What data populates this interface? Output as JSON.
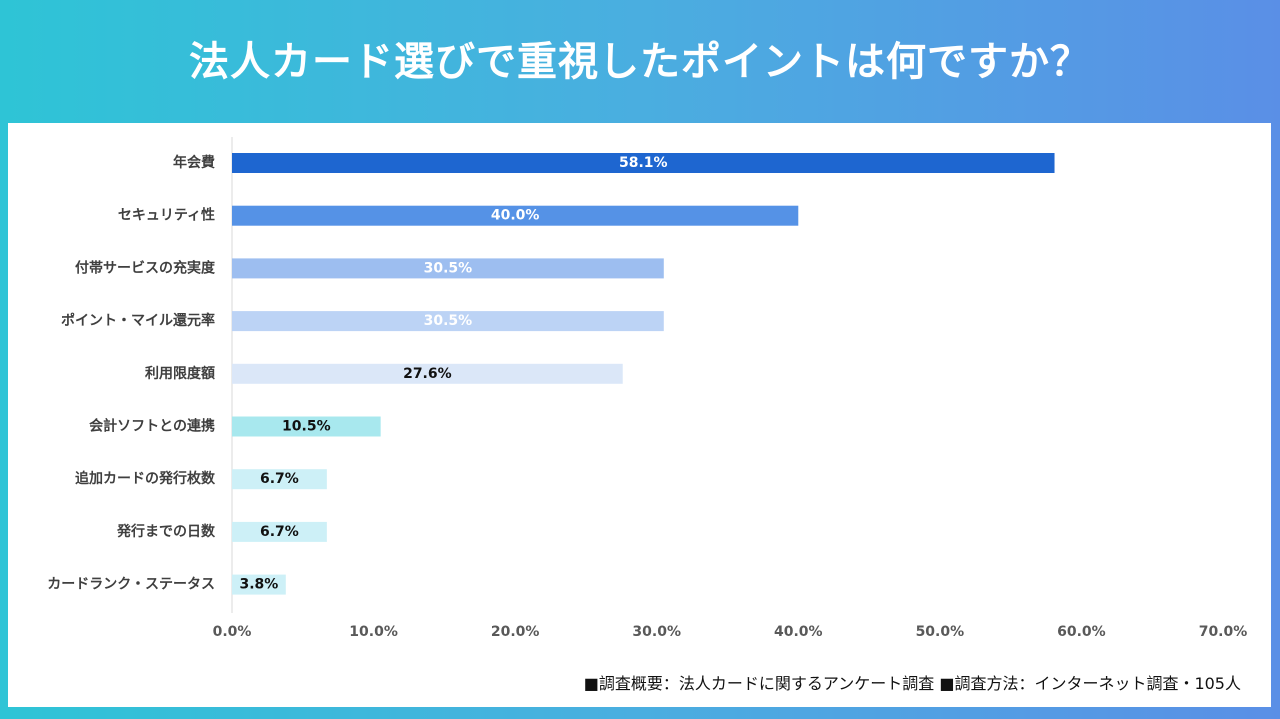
{
  "title": "法人カード選びで重視したポイントは何ですか？",
  "footnote": "■調査概要：法人カードに関するアンケート調査 ■調査方法：インターネット調査・105人",
  "chart_data": {
    "type": "bar",
    "orientation": "horizontal",
    "title": "法人カード選びで重視したポイントは何ですか？",
    "categories": [
      "年会費",
      "セキュリティ性",
      "付帯サービスの充実度",
      "ポイント・マイル還元率",
      "利用限度額",
      "会計ソフトとの連携",
      "追加カードの発行枚数",
      "発行までの日数",
      "カードランク・ステータス"
    ],
    "values": [
      58.1,
      40.0,
      30.5,
      30.5,
      27.6,
      10.5,
      6.7,
      6.7,
      3.8
    ],
    "data_labels": [
      "58.1%",
      "40.0%",
      "30.5%",
      "30.5%",
      "27.6%",
      "10.5%",
      "6.7%",
      "6.7%",
      "3.8%"
    ],
    "bar_colors": [
      "#1e66d0",
      "#5592e6",
      "#9dbef0",
      "#bcd3f5",
      "#dbe7f8",
      "#a8e8ee",
      "#cdf0f7",
      "#cdf0f7",
      "#cdf0f7"
    ],
    "label_colors": [
      "#ffffff",
      "#ffffff",
      "#ffffff",
      "#ffffff",
      "#111111",
      "#111111",
      "#111111",
      "#111111",
      "#111111"
    ],
    "xlim": [
      0,
      70
    ],
    "xticks": [
      0,
      10,
      20,
      30,
      40,
      50,
      60,
      70
    ],
    "xtick_labels": [
      "0.0%",
      "10.0%",
      "20.0%",
      "30.0%",
      "40.0%",
      "50.0%",
      "60.0%",
      "70.0%"
    ],
    "xlabel": "",
    "ylabel": "",
    "grid": false
  }
}
